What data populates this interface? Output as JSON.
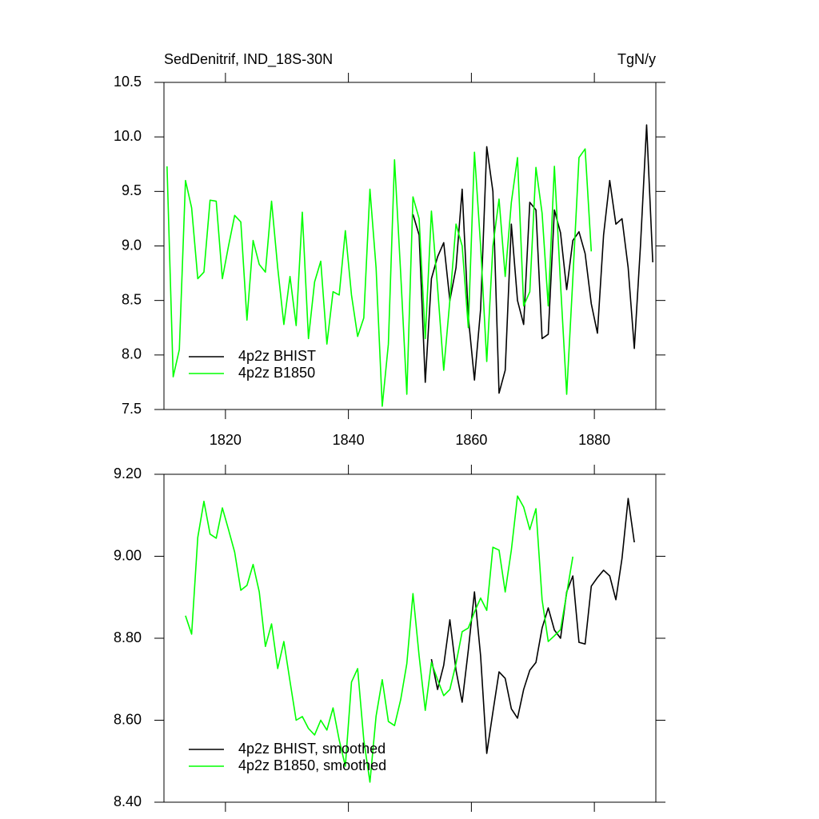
{
  "chart_data": [
    {
      "type": "line",
      "title": "SedDenitrif, IND_18S-30N",
      "units": "TgN/y",
      "xlim": [
        1810,
        1890
      ],
      "xticks": [
        1820,
        1840,
        1860,
        1880
      ],
      "ylim": [
        7.5,
        10.5
      ],
      "yticks": [
        7.5,
        {
          "value": 8.0,
          "label": "8.0"
        },
        8.5,
        {
          "value": 9.0,
          "label": "9.0"
        },
        9.5,
        {
          "value": 10.0,
          "label": "10.0"
        },
        10.5
      ],
      "legend": "lower left",
      "series": [
        {
          "name": "4p2z BHIST",
          "color": "#000000",
          "x": [
            1850.5,
            1851.5,
            1852.5,
            1853.5,
            1854.5,
            1855.5,
            1856.5,
            1857.5,
            1858.5,
            1859.5,
            1860.5,
            1861.5,
            1862.5,
            1863.5,
            1864.5,
            1865.5,
            1866.5,
            1867.5,
            1868.5,
            1869.5,
            1870.5,
            1871.5,
            1872.5,
            1873.5,
            1874.5,
            1875.5,
            1876.5,
            1877.5,
            1878.5,
            1879.5,
            1880.5,
            1881.5,
            1882.5,
            1883.5,
            1884.5,
            1885.5,
            1886.5,
            1887.5,
            1888.5,
            1889.5
          ],
          "values": [
            9.29,
            9.1,
            7.75,
            8.7,
            8.9,
            9.03,
            8.5,
            8.8,
            9.52,
            8.35,
            7.77,
            8.42,
            9.91,
            9.5,
            7.65,
            7.86,
            9.2,
            8.5,
            8.28,
            9.4,
            9.33,
            8.15,
            8.19,
            9.33,
            9.12,
            8.6,
            9.05,
            9.13,
            8.93,
            8.47,
            8.2,
            9.1,
            9.6,
            9.2,
            9.25,
            8.8,
            8.06,
            9.0,
            10.11,
            8.85
          ]
        },
        {
          "name": "4p2z B1850",
          "color": "#00ff00",
          "x": [
            1810.5,
            1811.5,
            1812.5,
            1813.5,
            1814.5,
            1815.5,
            1816.5,
            1817.5,
            1818.5,
            1819.5,
            1820.5,
            1821.5,
            1822.5,
            1823.5,
            1824.5,
            1825.5,
            1826.5,
            1827.5,
            1828.5,
            1829.5,
            1830.5,
            1831.5,
            1832.5,
            1833.5,
            1834.5,
            1835.5,
            1836.5,
            1837.5,
            1838.5,
            1839.5,
            1840.5,
            1841.5,
            1842.5,
            1843.5,
            1844.5,
            1845.5,
            1846.5,
            1847.5,
            1848.5,
            1849.5,
            1850.5,
            1851.5,
            1852.5,
            1853.5,
            1854.5,
            1855.5,
            1856.5,
            1857.5,
            1858.5,
            1859.5,
            1860.5,
            1861.5,
            1862.5,
            1863.5,
            1864.5,
            1865.5,
            1866.5,
            1867.5,
            1868.5,
            1869.5,
            1870.5,
            1871.5,
            1872.5,
            1873.5,
            1874.5,
            1875.5,
            1876.5,
            1877.5,
            1878.5,
            1879.5
          ],
          "values": [
            9.73,
            7.8,
            8.05,
            9.6,
            9.35,
            8.7,
            8.76,
            9.42,
            9.41,
            8.7,
            9.0,
            9.28,
            9.22,
            8.32,
            9.05,
            8.83,
            8.76,
            9.41,
            8.8,
            8.28,
            8.72,
            8.27,
            9.31,
            8.15,
            8.67,
            8.86,
            8.1,
            8.58,
            8.55,
            9.14,
            8.55,
            8.17,
            8.34,
            9.52,
            8.8,
            7.53,
            8.1,
            9.79,
            8.75,
            7.64,
            9.45,
            9.25,
            8.15,
            9.32,
            8.62,
            7.86,
            8.5,
            9.2,
            9.0,
            8.25,
            9.86,
            9.0,
            7.94,
            9.0,
            9.43,
            8.72,
            9.4,
            9.81,
            8.45,
            8.58,
            9.72,
            9.3,
            8.45,
            9.73,
            8.65,
            7.64,
            8.7,
            9.81,
            9.89,
            8.95
          ]
        }
      ]
    },
    {
      "type": "line",
      "xlim": [
        1810,
        1890
      ],
      "xticks": [
        1820,
        1840,
        1860,
        1880
      ],
      "ylim": [
        8.4,
        9.2
      ],
      "yticks": [
        {
          "value": 8.4,
          "label": "8.40"
        },
        {
          "value": 8.6,
          "label": "8.60"
        },
        {
          "value": 8.8,
          "label": "8.80"
        },
        {
          "value": 9.0,
          "label": "9.00"
        },
        {
          "value": 9.2,
          "label": "9.20"
        }
      ],
      "legend": "lower left",
      "series": [
        {
          "name": "4p2z BHIST, smoothed",
          "color": "#000000",
          "x": [
            1853.5,
            1854.5,
            1855.5,
            1856.5,
            1857.5,
            1858.5,
            1859.5,
            1860.5,
            1861.5,
            1862.5,
            1863.5,
            1864.5,
            1865.5,
            1866.5,
            1867.5,
            1868.5,
            1869.5,
            1870.5,
            1871.5,
            1872.5,
            1873.5,
            1874.5,
            1875.5,
            1876.5,
            1877.5,
            1878.5,
            1879.5,
            1880.5,
            1881.5,
            1882.5,
            1883.5,
            1884.5,
            1885.5,
            1886.5
          ],
          "values": [
            8.749,
            8.675,
            8.734,
            8.845,
            8.722,
            8.644,
            8.771,
            8.913,
            8.757,
            8.519,
            8.62,
            8.718,
            8.702,
            8.628,
            8.605,
            8.675,
            8.722,
            8.741,
            8.825,
            8.874,
            8.82,
            8.8,
            8.913,
            8.952,
            8.79,
            8.786,
            8.927,
            8.948,
            8.966,
            8.952,
            8.894,
            8.995,
            9.141,
            9.034
          ]
        },
        {
          "name": "4p2z B1850, smoothed",
          "color": "#00ff00",
          "x": [
            1813.5,
            1814.5,
            1815.5,
            1816.5,
            1817.5,
            1818.5,
            1819.5,
            1820.5,
            1821.5,
            1822.5,
            1823.5,
            1824.5,
            1825.5,
            1826.5,
            1827.5,
            1828.5,
            1829.5,
            1830.5,
            1831.5,
            1832.5,
            1833.5,
            1834.5,
            1835.5,
            1836.5,
            1837.5,
            1838.5,
            1839.5,
            1840.5,
            1841.5,
            1842.5,
            1843.5,
            1844.5,
            1845.5,
            1846.5,
            1847.5,
            1848.5,
            1849.5,
            1850.5,
            1851.5,
            1852.5,
            1853.5,
            1854.5,
            1855.5,
            1856.5,
            1857.5,
            1858.5,
            1859.5,
            1860.5,
            1861.5,
            1862.5,
            1863.5,
            1864.5,
            1865.5,
            1866.5,
            1867.5,
            1868.5,
            1869.5,
            1870.5,
            1871.5,
            1872.5,
            1873.5,
            1874.5,
            1875.5,
            1876.5
          ],
          "values": [
            8.855,
            8.81,
            9.046,
            9.134,
            9.054,
            9.044,
            9.118,
            9.065,
            9.01,
            8.917,
            8.929,
            8.98,
            8.913,
            8.78,
            8.835,
            8.726,
            8.792,
            8.695,
            8.6,
            8.609,
            8.58,
            8.564,
            8.6,
            8.576,
            8.63,
            8.552,
            8.488,
            8.693,
            8.726,
            8.552,
            8.449,
            8.61,
            8.699,
            8.597,
            8.587,
            8.65,
            8.738,
            8.909,
            8.757,
            8.624,
            8.741,
            8.699,
            8.66,
            8.675,
            8.738,
            8.816,
            8.825,
            8.864,
            8.898,
            8.868,
            9.022,
            9.015,
            8.913,
            9.015,
            9.147,
            9.12,
            9.065,
            9.116,
            8.894,
            8.792,
            8.806,
            8.821,
            8.909,
            8.999
          ]
        }
      ]
    }
  ]
}
